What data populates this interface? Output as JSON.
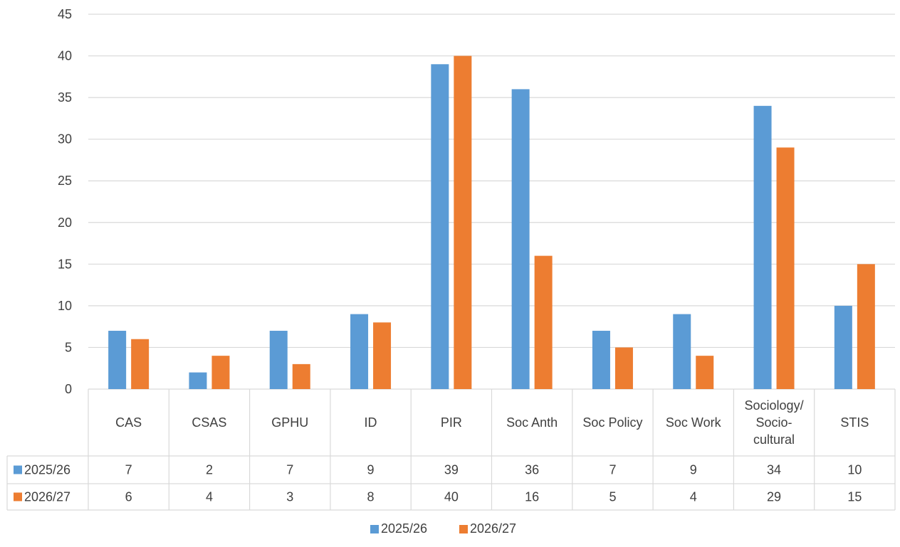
{
  "colors": {
    "series_1": "#5B9BD5",
    "series_2": "#ED7D31",
    "grid": "#D9D9D9",
    "text": "#404040"
  },
  "chart_data": {
    "type": "bar",
    "categories": [
      [
        "CAS"
      ],
      [
        "CSAS"
      ],
      [
        "GPHU"
      ],
      [
        "ID"
      ],
      [
        "PIR"
      ],
      [
        "Soc Anth"
      ],
      [
        "Soc Policy"
      ],
      [
        "Soc Work"
      ],
      [
        "Sociology/",
        "Socio-",
        "cultural"
      ],
      [
        "STIS"
      ]
    ],
    "series": [
      {
        "name": "2025/26",
        "values": [
          7,
          2,
          7,
          9,
          39,
          36,
          7,
          9,
          34,
          10
        ]
      },
      {
        "name": "2026/27",
        "values": [
          6,
          4,
          3,
          8,
          40,
          16,
          5,
          4,
          29,
          15
        ]
      }
    ],
    "ylim": [
      0,
      45
    ],
    "yticks": [
      0,
      5,
      10,
      15,
      20,
      25,
      30,
      35,
      40,
      45
    ],
    "grid": true,
    "data_table": true,
    "legend_position": "bottom-center"
  }
}
